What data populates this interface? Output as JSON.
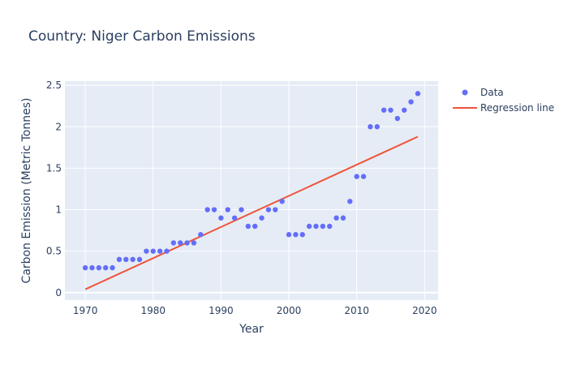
{
  "chart_data": {
    "type": "scatter",
    "title": "Country: Niger Carbon Emissions",
    "xlabel": "Year",
    "ylabel": "Carbon Emission (Metric Tonnes)",
    "xlim": [
      1967,
      2022
    ],
    "ylim": [
      -0.09,
      2.55
    ],
    "xticks": [
      1970,
      1980,
      1990,
      2000,
      2010,
      2020
    ],
    "yticks": [
      0,
      0.5,
      1,
      1.5,
      2,
      2.5
    ],
    "grid": true,
    "legend_position": "top-right",
    "series": [
      {
        "name": "Data",
        "mode": "markers",
        "color": "#636efa",
        "x": [
          1970,
          1971,
          1972,
          1973,
          1974,
          1975,
          1976,
          1977,
          1978,
          1979,
          1980,
          1981,
          1982,
          1983,
          1984,
          1985,
          1986,
          1987,
          1988,
          1989,
          1990,
          1991,
          1992,
          1993,
          1994,
          1995,
          1996,
          1997,
          1998,
          1999,
          2000,
          2001,
          2002,
          2003,
          2004,
          2005,
          2006,
          2007,
          2008,
          2009,
          2010,
          2011,
          2012,
          2013,
          2014,
          2015,
          2016,
          2017,
          2018,
          2019
        ],
        "y": [
          0.3,
          0.3,
          0.3,
          0.3,
          0.3,
          0.4,
          0.4,
          0.4,
          0.4,
          0.5,
          0.5,
          0.5,
          0.5,
          0.6,
          0.6,
          0.6,
          0.6,
          0.7,
          1.0,
          1.0,
          0.9,
          1.0,
          0.9,
          1.0,
          0.8,
          0.8,
          0.9,
          1.0,
          1.0,
          1.1,
          0.7,
          0.7,
          0.7,
          0.8,
          0.8,
          0.8,
          0.8,
          0.9,
          0.9,
          1.1,
          1.4,
          1.4,
          2.0,
          2.0,
          2.2,
          2.2,
          2.1,
          2.2,
          2.3,
          2.4
        ]
      },
      {
        "name": "Regression line",
        "mode": "lines",
        "color": "#ef553b",
        "x": [
          1970,
          2019
        ],
        "y": [
          0.04,
          1.88
        ]
      }
    ]
  }
}
